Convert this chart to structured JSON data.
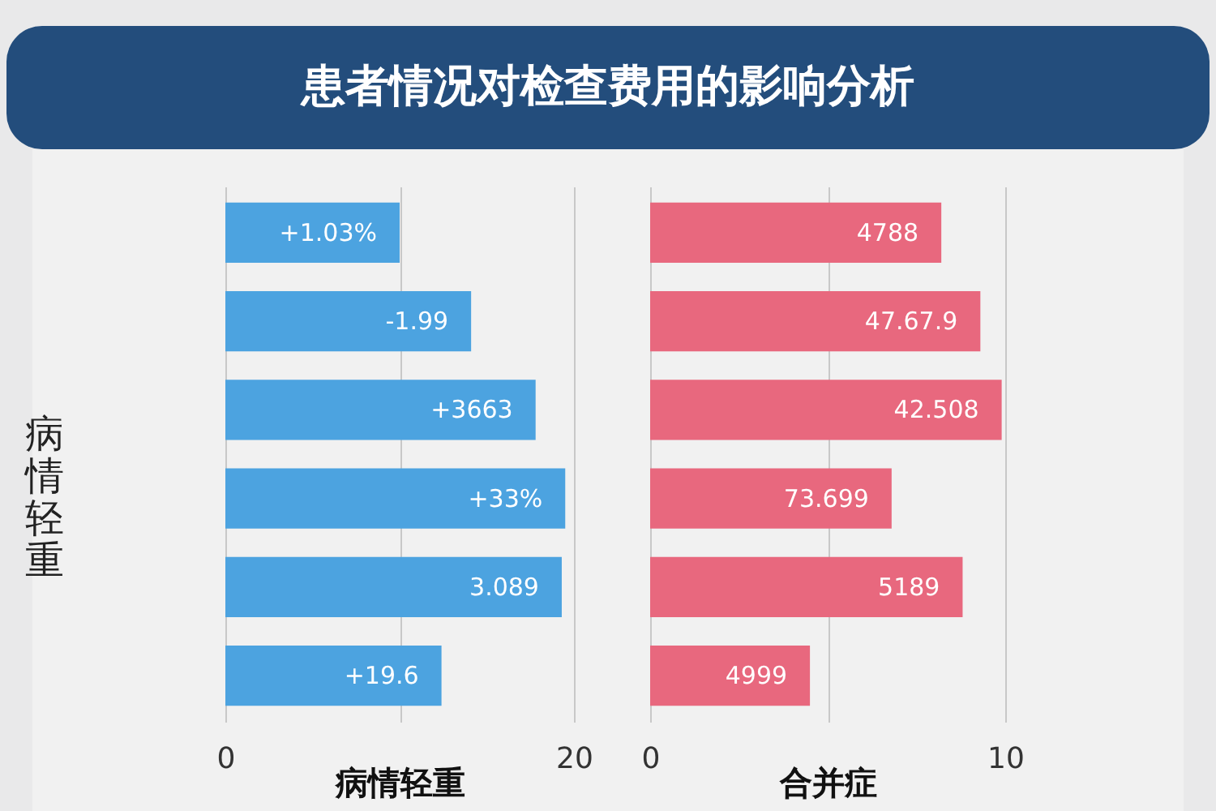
{
  "chart_data": [
    {
      "type": "bar",
      "orientation": "horizontal",
      "title": "患者情况对检查费用的影响分析",
      "xlabel": "病情轻重",
      "ylabel": "病情轻重",
      "categories": [
        null,
        null,
        null,
        null,
        null,
        null
      ],
      "series": [
        {
          "color": "#4ca3e0",
          "values": [
            10.0,
            14.1,
            17.8,
            19.5,
            19.3,
            12.4
          ]
        }
      ],
      "annotations": [
        "+1.03%",
        "-1.99",
        "+3663",
        "+33%",
        "3.089",
        "+19.6"
      ],
      "xlim": [
        0,
        20
      ],
      "xticks": [
        0,
        {
          "value": 10,
          "label": null
        },
        20
      ],
      "grid": "x",
      "legend": false
    },
    {
      "type": "bar",
      "orientation": "horizontal",
      "xlabel": "合并症",
      "categories": [
        null,
        null,
        null,
        null,
        null,
        null
      ],
      "series": [
        {
          "color": "#e8687e",
          "values": [
            8.2,
            9.3,
            9.9,
            6.8,
            8.8,
            4.5
          ]
        }
      ],
      "annotations": [
        "4788",
        "47.67.9",
        "42.508",
        "73.699",
        "5189",
        "4999"
      ],
      "xlim": [
        0,
        10
      ],
      "xticks": [
        0,
        {
          "value": 5,
          "label": null
        },
        10
      ],
      "grid": "x",
      "legend": false
    }
  ]
}
